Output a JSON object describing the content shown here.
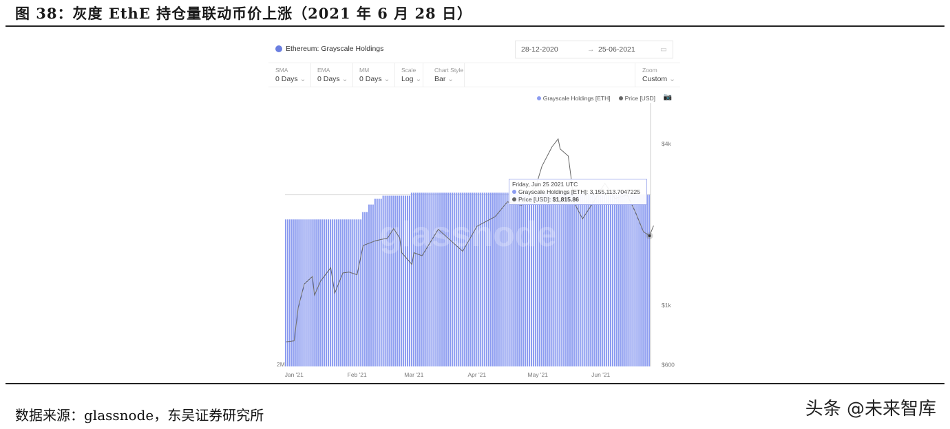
{
  "figure_title": "图 38：灰度 EthE 持仓量联动币价上涨（2021 年 6 月 28 日）",
  "source": "数据来源：glassnode，东吴证券研究所",
  "watermark": "头条 @未来智库",
  "card": {
    "title": "Ethereum: Grayscale Holdings",
    "date_from": "28-12-2020",
    "date_arrow": "→",
    "date_to": "25-06-2021",
    "controls": [
      {
        "label": "SMA",
        "value": "0 Days"
      },
      {
        "label": "EMA",
        "value": "0 Days"
      },
      {
        "label": "MM",
        "value": "0 Days"
      },
      {
        "label": "Scale",
        "value": "Log"
      },
      {
        "label": "Chart Style",
        "value": "Bar"
      },
      {
        "label": "Zoom",
        "value": "Custom"
      }
    ],
    "chevron": "⌄"
  },
  "tooltip": {
    "date": "Friday, Jun 25 2021 UTC",
    "holdings_label": "Grayscale Holdings [ETH]:",
    "holdings_value": "3,155,113.7047225",
    "price_label": "Price [USD]:",
    "price_value": "$1,815.86"
  },
  "chart_data": {
    "type": "bar+line",
    "legend_position": "top-right",
    "series": [
      {
        "name": "Grayscale Holdings [ETH]",
        "kind": "bar",
        "color": "#8c9cf0",
        "axis": "left",
        "steps": [
          [
            "2020-12-28",
            2990000
          ],
          [
            "2021-02-04",
            3040000
          ],
          [
            "2021-02-07",
            3090000
          ],
          [
            "2021-02-10",
            3130000
          ],
          [
            "2021-02-14",
            3150000
          ],
          [
            "2021-02-28",
            3170000
          ],
          [
            "2021-06-21",
            3155114
          ]
        ]
      },
      {
        "name": "Price [USD]",
        "kind": "line",
        "color": "#666666",
        "axis": "right",
        "points": [
          [
            "2020-12-28",
            730
          ],
          [
            "2021-01-01",
            737
          ],
          [
            "2021-01-03",
            980
          ],
          [
            "2021-01-06",
            1200
          ],
          [
            "2021-01-10",
            1280
          ],
          [
            "2021-01-11",
            1090
          ],
          [
            "2021-01-14",
            1230
          ],
          [
            "2021-01-19",
            1380
          ],
          [
            "2021-01-21",
            1110
          ],
          [
            "2021-01-25",
            1320
          ],
          [
            "2021-01-28",
            1330
          ],
          [
            "2021-02-01",
            1300
          ],
          [
            "2021-02-04",
            1670
          ],
          [
            "2021-02-10",
            1740
          ],
          [
            "2021-02-16",
            1780
          ],
          [
            "2021-02-19",
            1930
          ],
          [
            "2021-02-22",
            1780
          ],
          [
            "2021-02-23",
            1570
          ],
          [
            "2021-02-28",
            1420
          ],
          [
            "2021-03-01",
            1570
          ],
          [
            "2021-03-05",
            1530
          ],
          [
            "2021-03-13",
            1920
          ],
          [
            "2021-03-17",
            1800
          ],
          [
            "2021-03-25",
            1590
          ],
          [
            "2021-04-01",
            1970
          ],
          [
            "2021-04-10",
            2140
          ],
          [
            "2021-04-16",
            2430
          ],
          [
            "2021-04-23",
            2360
          ],
          [
            "2021-04-30",
            2770
          ],
          [
            "2021-05-03",
            3300
          ],
          [
            "2021-05-08",
            3900
          ],
          [
            "2021-05-11",
            4170
          ],
          [
            "2021-05-12",
            3830
          ],
          [
            "2021-05-16",
            3600
          ],
          [
            "2021-05-19",
            2400
          ],
          [
            "2021-05-23",
            2100
          ],
          [
            "2021-05-28",
            2400
          ],
          [
            "2021-06-03",
            2850
          ],
          [
            "2021-06-08",
            2500
          ],
          [
            "2021-06-14",
            2580
          ],
          [
            "2021-06-18",
            2230
          ],
          [
            "2021-06-22",
            1880
          ],
          [
            "2021-06-25",
            1815.86
          ],
          [
            "2021-06-27",
            1980
          ]
        ]
      }
    ],
    "left_axis": {
      "ticks": [
        "2M"
      ],
      "min": 2000000
    },
    "right_axis": {
      "scale": "log",
      "ticks": [
        "$4k",
        "$1k",
        "$600"
      ],
      "tick_values": [
        4000,
        1000,
        600
      ]
    },
    "x_ticks": [
      "Jan '21",
      "Feb '21",
      "Mar '21",
      "Apr '21",
      "May '21",
      "Jun '21"
    ],
    "x_tick_dates": [
      "2021-01-01",
      "2021-02-01",
      "2021-03-01",
      "2021-04-01",
      "2021-05-01",
      "2021-06-01"
    ],
    "watermark": "glassnode"
  }
}
